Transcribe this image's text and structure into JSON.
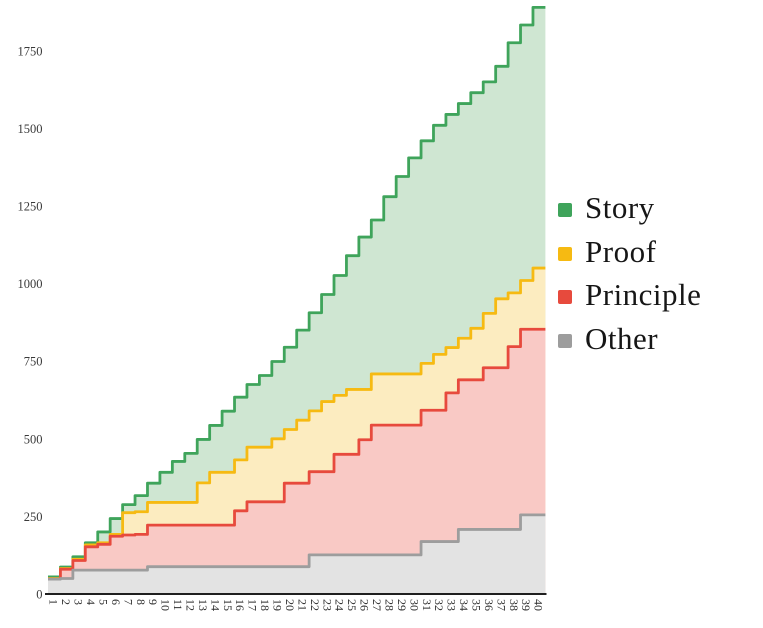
{
  "chart_data": {
    "type": "area",
    "variant": "stacked-step-cumulative-counts",
    "title": "",
    "xlabel": "",
    "ylabel": "",
    "x": [
      1,
      2,
      3,
      4,
      5,
      6,
      7,
      8,
      9,
      10,
      11,
      12,
      13,
      14,
      15,
      16,
      17,
      18,
      19,
      20,
      21,
      22,
      23,
      24,
      25,
      26,
      27,
      28,
      29,
      30,
      31,
      32,
      33,
      34,
      35,
      36,
      37,
      38,
      39,
      40
    ],
    "yticks": [
      0,
      250,
      500,
      750,
      1000,
      1250,
      1500,
      1750
    ],
    "ylim": [
      0,
      1900
    ],
    "grid": "off",
    "legend_position": "right",
    "note": "Each series value is the cumulative stacked top line read from the plot (stair-step).",
    "series": [
      {
        "name": "Story",
        "line_color": "#3fa45b",
        "fill_color": "#cfe6d2",
        "cumulative_top": [
          55,
          87,
          120,
          165,
          200,
          243,
          288,
          317,
          357,
          392,
          427,
          453,
          498,
          543,
          589,
          634,
          675,
          704,
          749,
          795,
          850,
          906,
          965,
          1026,
          1090,
          1150,
          1205,
          1280,
          1345,
          1405,
          1460,
          1510,
          1545,
          1580,
          1615,
          1650,
          1700,
          1776,
          1833,
          1890
        ]
      },
      {
        "name": "Proof",
        "line_color": "#f6ba12",
        "fill_color": "#fcecc0",
        "cumulative_top": [
          50,
          82,
          112,
          158,
          165,
          192,
          262,
          265,
          295,
          295,
          295,
          295,
          358,
          392,
          392,
          432,
          473,
          473,
          500,
          530,
          560,
          590,
          620,
          640,
          659,
          659,
          709,
          709,
          709,
          709,
          743,
          772,
          794,
          824,
          856,
          904,
          951,
          970,
          1010,
          1050
        ]
      },
      {
        "name": "Principle",
        "line_color": "#e74a3d",
        "fill_color": "#f9c9c5",
        "cumulative_top": [
          48,
          80,
          108,
          152,
          160,
          186,
          190,
          192,
          222,
          222,
          222,
          222,
          222,
          222,
          222,
          268,
          297,
          297,
          297,
          357,
          357,
          394,
          394,
          450,
          450,
          497,
          544,
          544,
          544,
          544,
          592,
          592,
          648,
          690,
          690,
          729,
          729,
          797,
          853,
          853
        ]
      },
      {
        "name": "Other",
        "line_color": "#9d9d9d",
        "fill_color": "#e3e3e3",
        "cumulative_top": [
          48,
          50,
          77,
          77,
          77,
          77,
          77,
          77,
          88,
          88,
          88,
          88,
          88,
          88,
          88,
          88,
          88,
          88,
          88,
          88,
          88,
          126,
          126,
          126,
          126,
          126,
          126,
          126,
          126,
          126,
          169,
          169,
          169,
          208,
          208,
          208,
          208,
          208,
          255,
          255
        ]
      }
    ]
  },
  "legend": {
    "items": [
      {
        "label": "Story",
        "color": "#3fa45b"
      },
      {
        "label": "Proof",
        "color": "#f6ba12"
      },
      {
        "label": "Principle",
        "color": "#e74a3d"
      },
      {
        "label": "Other",
        "color": "#9d9d9d"
      }
    ]
  },
  "axis": {
    "line_color": "#1f1f1f"
  }
}
